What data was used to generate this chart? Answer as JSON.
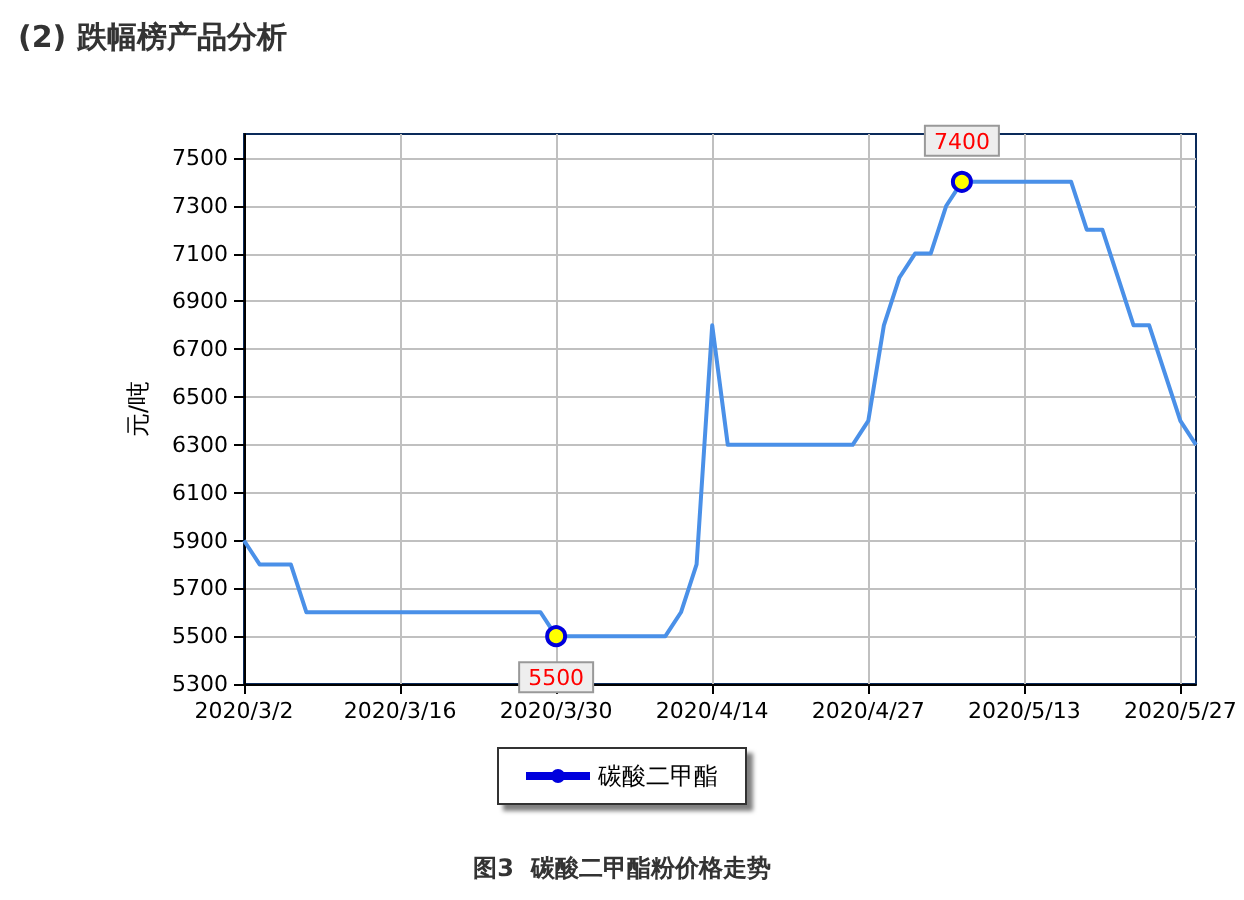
{
  "chart_data": {
    "type": "line",
    "title": "(2) 跌幅榜产品分析",
    "ylabel": "元/吨",
    "annotations": [
      "图3  碳酸二甲酯粉价格走势"
    ],
    "categories": [
      "2020/3/2",
      null,
      null,
      null,
      null,
      null,
      null,
      null,
      null,
      null,
      "2020/3/16",
      null,
      null,
      null,
      null,
      null,
      null,
      null,
      null,
      null,
      "2020/3/30",
      null,
      null,
      null,
      null,
      null,
      null,
      null,
      null,
      null,
      "2020/4/14",
      null,
      null,
      null,
      null,
      null,
      null,
      null,
      null,
      null,
      "2020/4/27",
      null,
      null,
      null,
      null,
      null,
      null,
      null,
      null,
      null,
      "2020/5/13",
      null,
      null,
      null,
      null,
      null,
      null,
      null,
      null,
      null,
      "2020/5/27",
      null
    ],
    "series": [
      {
        "name": "碳酸二甲酯",
        "color": "#4a90e8",
        "values": [
          5900,
          5800,
          5800,
          5800,
          5600,
          5600,
          5600,
          5600,
          5600,
          5600,
          5600,
          5600,
          5600,
          5600,
          5600,
          5600,
          5600,
          5600,
          5600,
          5600,
          5500,
          5500,
          5500,
          5500,
          5500,
          5500,
          5500,
          5500,
          5600,
          5800,
          6800,
          6300,
          6300,
          6300,
          6300,
          6300,
          6300,
          6300,
          6300,
          6300,
          6400,
          6800,
          7000,
          7100,
          7100,
          7300,
          7400,
          7400,
          7400,
          7400,
          7400,
          7400,
          7400,
          7400,
          7200,
          7200,
          7000,
          6800,
          6800,
          6600,
          6400,
          6300
        ],
        "value_labels": [
          null,
          null,
          null,
          null,
          null,
          null,
          null,
          null,
          null,
          null,
          null,
          null,
          null,
          null,
          null,
          null,
          null,
          null,
          null,
          null,
          "5500",
          null,
          null,
          null,
          null,
          null,
          null,
          null,
          null,
          null,
          null,
          null,
          null,
          null,
          null,
          null,
          null,
          null,
          null,
          null,
          null,
          null,
          null,
          null,
          null,
          null,
          "7400",
          null,
          null,
          null,
          null,
          null,
          null,
          null,
          null,
          null,
          null,
          null,
          null,
          null,
          null,
          null
        ]
      }
    ],
    "ylim": [
      5300,
      7600
    ],
    "yticks": [
      5300,
      5500,
      5700,
      5900,
      6100,
      6300,
      6500,
      6700,
      6900,
      7100,
      7300,
      7500
    ],
    "grid": true,
    "legend": "bottom",
    "line_style": "solid"
  }
}
